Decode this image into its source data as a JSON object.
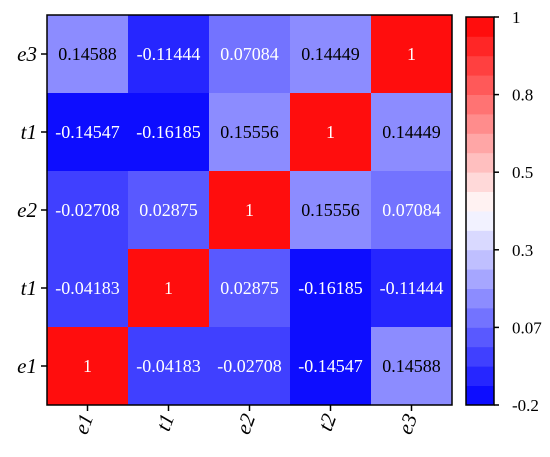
{
  "chart_data": {
    "type": "heatmap",
    "title": "",
    "xlabel": "",
    "ylabel": "",
    "x_categories": [
      "e1",
      "t1",
      "e2",
      "t2",
      "e3"
    ],
    "y_categories_top_to_bottom": [
      "e3",
      "t1",
      "e2",
      "t1",
      "e1"
    ],
    "matrix_top_to_bottom": [
      [
        "0.14588",
        "-0.11444",
        "0.07084",
        "0.14449",
        "1"
      ],
      [
        "-0.14547",
        "-0.16185",
        "0.15556",
        "1",
        "0.14449"
      ],
      [
        "-0.02708",
        "0.02875",
        "1",
        "0.15556",
        "0.07084"
      ],
      [
        "-0.04183",
        "1",
        "0.02875",
        "-0.16185",
        "-0.11444"
      ],
      [
        "1",
        "-0.04183",
        "-0.02708",
        "-0.14547",
        "0.14588"
      ]
    ],
    "colorbar": {
      "min": -0.2,
      "max": 1,
      "tick_labels": [
        "1",
        "0.8",
        "0.5",
        "0.3",
        "0.07",
        "-0.2"
      ],
      "tick_values": [
        1,
        0.8,
        0.5,
        0.3,
        0.07,
        -0.2
      ],
      "levels": 20,
      "color_low": "#0000ff",
      "color_mid": "#ffffff",
      "color_high": "#ff0000",
      "mid_value": 0.4
    },
    "grid": false
  }
}
